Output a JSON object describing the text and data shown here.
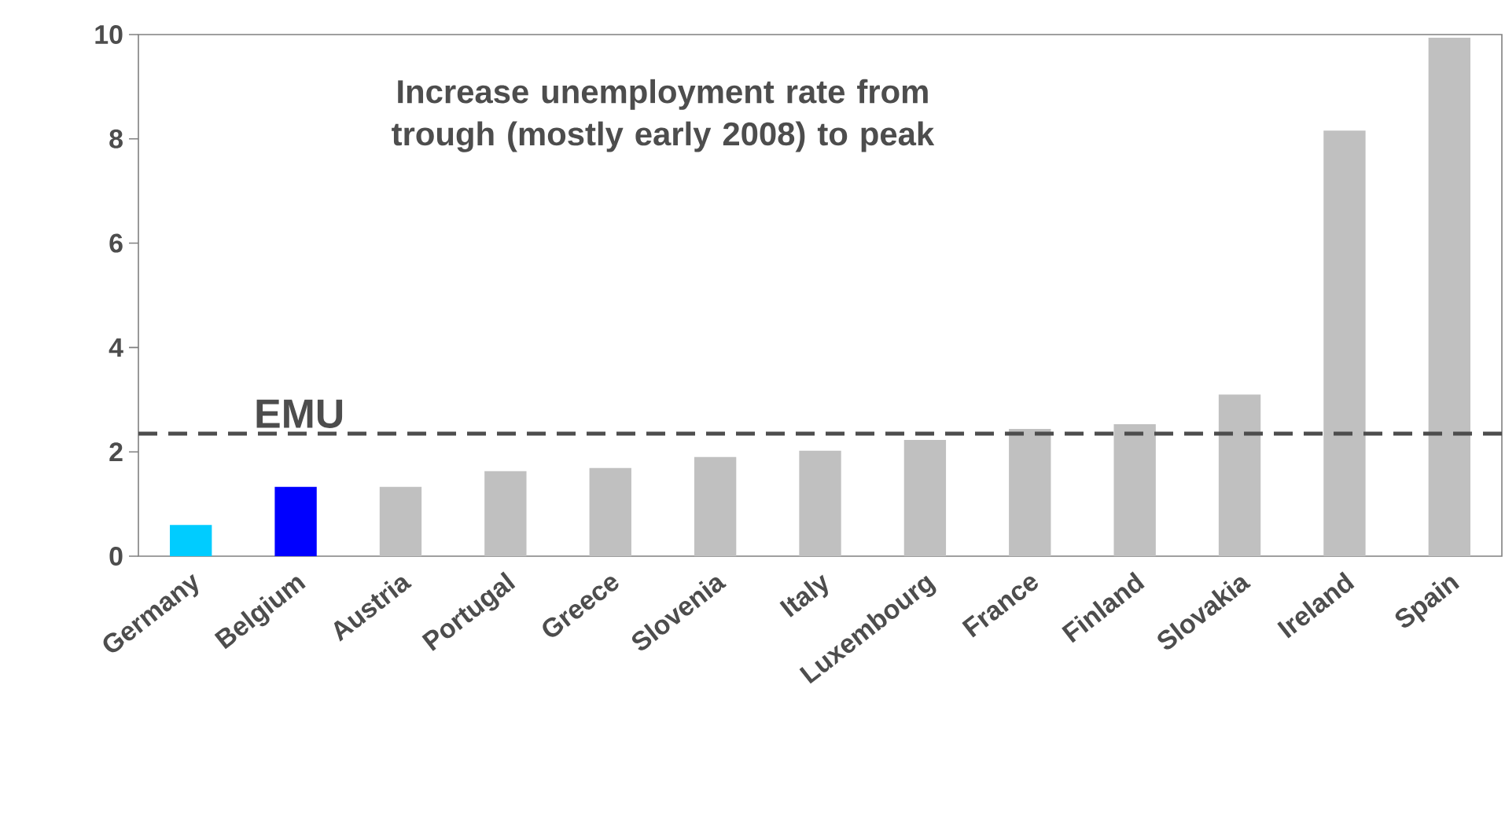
{
  "chart_data": {
    "type": "bar",
    "categories": [
      "Germany",
      "Belgium",
      "Austria",
      "Portugal",
      "Greece",
      "Slovenia",
      "Italy",
      "Luxembourg",
      "France",
      "Finland",
      "Slovakia",
      "Ireland",
      "Spain"
    ],
    "values": [
      0.6,
      1.33,
      1.33,
      1.63,
      1.69,
      1.9,
      2.02,
      2.23,
      2.44,
      2.53,
      3.1,
      8.16,
      9.94
    ],
    "colors": [
      "#00ccff",
      "#0000ff",
      "#c0c0c0",
      "#c0c0c0",
      "#c0c0c0",
      "#c0c0c0",
      "#c0c0c0",
      "#c0c0c0",
      "#c0c0c0",
      "#c0c0c0",
      "#c0c0c0",
      "#c0c0c0",
      "#c0c0c0"
    ],
    "ylim": [
      0,
      10
    ],
    "yticks": [
      0,
      2,
      4,
      6,
      8,
      10
    ],
    "ref_lines": [
      {
        "axis": "y",
        "value": 2.35,
        "label": "EMU",
        "color": "#4d4d4d",
        "line_style": "dashed"
      }
    ],
    "annotations": [
      "Increase unemployment rate from trough (mostly early 2008) to peak"
    ]
  }
}
